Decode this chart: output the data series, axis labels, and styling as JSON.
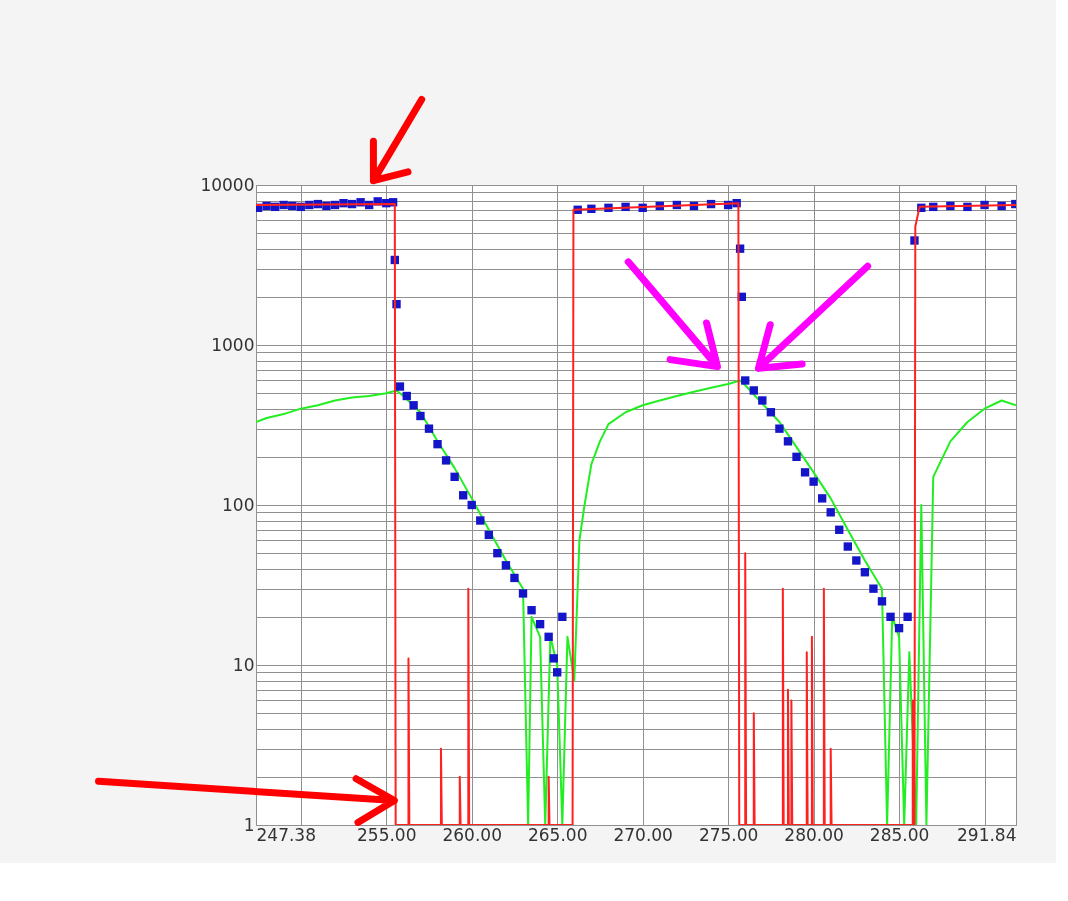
{
  "chart_data": {
    "type": "line",
    "log": "y",
    "grid": true,
    "tick_labels": "xy",
    "xlim": [
      247.38,
      291.84
    ],
    "xticks": [
      {
        "value": 247.38,
        "label": "247.38"
      },
      {
        "value": 250,
        "label": null
      },
      {
        "value": 255,
        "label": "255.00"
      },
      {
        "value": 260,
        "label": "260.00"
      },
      {
        "value": 265,
        "label": "265.00"
      },
      {
        "value": 270,
        "label": "270.00"
      },
      {
        "value": 275,
        "label": "275.00"
      },
      {
        "value": 280,
        "label": "280.00"
      },
      {
        "value": 285,
        "label": "285.00"
      },
      {
        "value": 290,
        "label": null
      },
      {
        "value": 291.84,
        "label": "291.84"
      }
    ],
    "ylim": [
      1,
      10000
    ],
    "yticks": [
      1,
      {
        "value": 2,
        "label": null
      },
      {
        "value": 3,
        "label": null
      },
      {
        "value": 4,
        "label": null
      },
      {
        "value": 5,
        "label": null
      },
      {
        "value": 6,
        "label": null
      },
      {
        "value": 7,
        "label": null
      },
      {
        "value": 8,
        "label": null
      },
      {
        "value": 9,
        "label": null
      },
      10,
      {
        "value": 20,
        "label": null
      },
      {
        "value": 30,
        "label": null
      },
      {
        "value": 40,
        "label": null
      },
      {
        "value": 50,
        "label": null
      },
      {
        "value": 60,
        "label": null
      },
      {
        "value": 70,
        "label": null
      },
      {
        "value": 80,
        "label": null
      },
      {
        "value": 90,
        "label": null
      },
      100,
      {
        "value": 200,
        "label": null
      },
      {
        "value": 300,
        "label": null
      },
      {
        "value": 400,
        "label": null
      },
      {
        "value": 500,
        "label": null
      },
      {
        "value": 600,
        "label": null
      },
      {
        "value": 700,
        "label": null
      },
      {
        "value": 800,
        "label": null
      },
      {
        "value": 900,
        "label": null
      },
      1000,
      {
        "value": 2000,
        "label": null
      },
      {
        "value": 3000,
        "label": null
      },
      {
        "value": 4000,
        "label": null
      },
      {
        "value": 5000,
        "label": null
      },
      {
        "value": 6000,
        "label": null
      },
      {
        "value": 7000,
        "label": null
      },
      {
        "value": 8000,
        "label": null
      },
      {
        "value": 9000,
        "label": null
      },
      10000
    ],
    "series": [
      {
        "type": "line",
        "color": "#22ee22",
        "line_style": "solid",
        "x": [
          247.38,
          248,
          249,
          250,
          251,
          252,
          253,
          254,
          255,
          255.6,
          256,
          257,
          258,
          259,
          260,
          261,
          262,
          263,
          263.3,
          263.5,
          264,
          264.3,
          264.6,
          265,
          265.3,
          265.6,
          266,
          266.3,
          266.6,
          267,
          267.5,
          268,
          269,
          270,
          271,
          272,
          273,
          274,
          275,
          275.7,
          276,
          277,
          278,
          279,
          280,
          281,
          282,
          283,
          284,
          284.3,
          284.6,
          285,
          285.3,
          285.6,
          286,
          286.3,
          286.6,
          287,
          288,
          289,
          290,
          291,
          291.84
        ],
        "values": [
          330,
          350,
          370,
          400,
          420,
          450,
          470,
          480,
          500,
          520,
          480,
          380,
          250,
          170,
          110,
          70,
          45,
          30,
          1,
          20,
          15,
          1,
          15,
          10,
          1,
          15,
          8,
          60,
          100,
          180,
          250,
          320,
          380,
          420,
          450,
          480,
          510,
          540,
          570,
          600,
          560,
          430,
          330,
          230,
          160,
          110,
          70,
          45,
          30,
          1,
          20,
          15,
          1,
          12,
          1,
          100,
          1,
          150,
          250,
          330,
          400,
          450,
          420
        ]
      },
      {
        "type": "scatter",
        "marker": "square",
        "color": "#1414c8",
        "x": [
          247.5,
          248,
          248.5,
          249,
          249.5,
          250,
          250.5,
          251,
          251.5,
          252,
          252.5,
          253,
          253.5,
          254,
          254.5,
          255,
          255.4,
          255.5,
          255.6,
          255.8,
          256.2,
          256.6,
          257,
          257.5,
          258,
          258.5,
          259,
          259.5,
          260,
          260.5,
          261,
          261.5,
          262,
          262.5,
          263,
          263.5,
          264,
          264.5,
          264.8,
          265,
          265.3,
          266.2,
          267,
          268,
          269,
          270,
          271,
          272,
          273,
          274,
          275,
          275.5,
          275.7,
          275.8,
          276,
          276.5,
          277,
          277.5,
          278,
          278.5,
          279,
          279.5,
          280,
          280.5,
          281,
          281.5,
          282,
          282.5,
          283,
          283.5,
          284,
          284.5,
          285,
          285.5,
          285.9,
          286.3,
          287,
          288,
          289,
          290,
          291,
          291.8
        ],
        "values": [
          7200,
          7400,
          7300,
          7500,
          7400,
          7300,
          7500,
          7600,
          7400,
          7500,
          7700,
          7600,
          7800,
          7500,
          7900,
          7700,
          7800,
          3400,
          1800,
          550,
          480,
          420,
          360,
          300,
          240,
          190,
          150,
          115,
          100,
          80,
          65,
          50,
          42,
          35,
          28,
          22,
          18,
          15,
          11,
          9,
          20,
          7000,
          7100,
          7200,
          7300,
          7200,
          7400,
          7500,
          7400,
          7600,
          7500,
          7700,
          4000,
          2000,
          600,
          520,
          450,
          380,
          300,
          250,
          200,
          160,
          140,
          110,
          90,
          70,
          55,
          45,
          38,
          30,
          25,
          20,
          17,
          20,
          4500,
          7200,
          7300,
          7400,
          7300,
          7500,
          7400,
          7600
        ]
      },
      {
        "type": "line",
        "color": "#ff2020",
        "line_style": "solid",
        "x": [
          247.38,
          255.5,
          255.55,
          256.3,
          256.3,
          256.35,
          258.2,
          258.2,
          258.25,
          259.3,
          259.3,
          259.35,
          259.8,
          259.8,
          259.85,
          264.5,
          264.5,
          264.55,
          265.9,
          265.95,
          275.6,
          275.65,
          276.0,
          276.0,
          276.05,
          276.5,
          276.5,
          276.55,
          278.2,
          278.2,
          278.25,
          278.5,
          278.5,
          278.55,
          278.7,
          278.7,
          278.75,
          279.6,
          279.6,
          279.65,
          279.9,
          279.9,
          279.95,
          280.6,
          280.6,
          280.65,
          281.0,
          281.0,
          281.05,
          285.8,
          285.8,
          285.85,
          285.9,
          285.95,
          286.2,
          291.84
        ],
        "values": [
          7500,
          7600,
          1,
          1,
          11,
          1,
          1,
          3,
          1,
          1,
          2,
          1,
          1,
          30,
          1,
          1,
          2,
          1,
          1,
          7000,
          7700,
          1,
          1,
          50,
          1,
          1,
          5,
          1,
          1,
          30,
          1,
          1,
          7,
          1,
          1,
          6,
          1,
          1,
          12,
          1,
          1,
          15,
          1,
          1,
          30,
          1,
          1,
          3,
          1,
          1,
          6,
          1,
          1,
          5500,
          7300,
          7500
        ]
      }
    ]
  }
}
